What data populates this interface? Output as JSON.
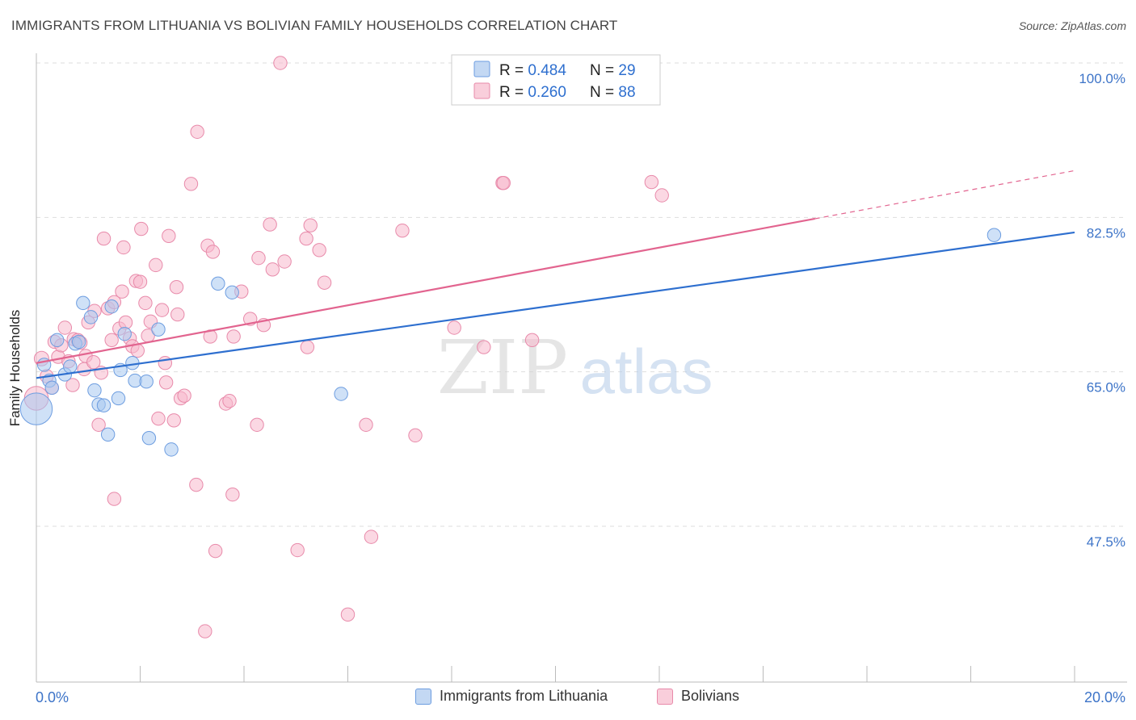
{
  "title": "IMMIGRANTS FROM LITHUANIA VS BOLIVIAN FAMILY HOUSEHOLDS CORRELATION CHART",
  "source": "Source: ZipAtlas.com",
  "watermark": {
    "zip": "ZIP",
    "atlas": "atlas"
  },
  "colors": {
    "blue_fill": "#a8c8f0",
    "blue_stroke": "#6d9de0",
    "blue_line": "#2e6fcf",
    "pink_fill": "#f7b8cc",
    "pink_stroke": "#e88aaa",
    "pink_line": "#e2648f",
    "axis_text": "#3d74c8",
    "grid": "#dddddd"
  },
  "legend": {
    "rows": [
      {
        "series": "blue",
        "r_label": "R = ",
        "r_value": "0.484",
        "n_label": "N = ",
        "n_value": "29"
      },
      {
        "series": "pink",
        "r_label": "R = ",
        "r_value": "0.260",
        "n_label": "N = ",
        "n_value": "88"
      }
    ]
  },
  "bottom_legend": [
    {
      "series": "blue",
      "label": "Immigrants from Lithuania"
    },
    {
      "series": "pink",
      "label": "Bolivians"
    }
  ],
  "chart_data": {
    "type": "scatter",
    "title": "IMMIGRANTS FROM LITHUANIA VS BOLIVIAN FAMILY HOUSEHOLDS CORRELATION CHART",
    "xlabel": "",
    "ylabel": "Family Households",
    "xlim": [
      0.0,
      20.0
    ],
    "ylim": [
      30.0,
      102.0
    ],
    "x_tick_labels": [
      {
        "value": 0.0,
        "label": "0.0%"
      },
      {
        "value": 20.0,
        "label": "20.0%"
      }
    ],
    "y_tick_labels": [
      {
        "value": 100.0,
        "label": "100.0%"
      },
      {
        "value": 82.5,
        "label": "82.5%"
      },
      {
        "value": 65.0,
        "label": "65.0%"
      },
      {
        "value": 47.5,
        "label": "47.5%"
      }
    ],
    "series": [
      {
        "name": "Immigrants from Lithuania",
        "color": "blue",
        "R": 0.484,
        "N": 29,
        "trend": {
          "x0": 0.0,
          "y0": 64.3,
          "x1": 20.0,
          "y1": 80.8,
          "dash_from": null
        },
        "points": [
          [
            0.0,
            60.8,
            24
          ],
          [
            0.15,
            65.8,
            10
          ],
          [
            0.25,
            64.0,
            10
          ],
          [
            0.3,
            63.2,
            10
          ],
          [
            0.4,
            68.6,
            10
          ],
          [
            0.55,
            64.7,
            10
          ],
          [
            0.65,
            65.6,
            10
          ],
          [
            0.75,
            68.2,
            10
          ],
          [
            0.82,
            68.4,
            10
          ],
          [
            0.9,
            72.8,
            10
          ],
          [
            1.05,
            71.2,
            10
          ],
          [
            1.12,
            62.9,
            10
          ],
          [
            1.2,
            61.3,
            10
          ],
          [
            1.3,
            61.2,
            10
          ],
          [
            1.38,
            57.9,
            10
          ],
          [
            1.45,
            72.4,
            10
          ],
          [
            1.58,
            62.0,
            10
          ],
          [
            1.62,
            65.2,
            10
          ],
          [
            1.7,
            69.3,
            10
          ],
          [
            1.85,
            66.0,
            10
          ],
          [
            1.9,
            64.0,
            10
          ],
          [
            2.12,
            63.9,
            10
          ],
          [
            2.17,
            57.5,
            10
          ],
          [
            2.35,
            69.8,
            10
          ],
          [
            2.6,
            56.2,
            10
          ],
          [
            3.5,
            75.0,
            10
          ],
          [
            3.77,
            74.0,
            10
          ],
          [
            5.87,
            62.5,
            10
          ],
          [
            18.45,
            80.5,
            10
          ]
        ]
      },
      {
        "name": "Bolivians",
        "color": "pink",
        "R": 0.26,
        "N": 88,
        "trend": {
          "x0": 0.0,
          "y0": 66.0,
          "x1": 20.0,
          "y1": 87.8,
          "dash_from": 15.0
        },
        "points": [
          [
            0.0,
            62.0,
            18
          ],
          [
            0.1,
            66.5,
            11
          ],
          [
            0.2,
            64.5,
            10
          ],
          [
            0.3,
            63.2,
            10
          ],
          [
            0.35,
            68.4,
            10
          ],
          [
            0.42,
            66.7,
            10
          ],
          [
            0.48,
            68.0,
            10
          ],
          [
            0.55,
            70.0,
            10
          ],
          [
            0.62,
            66.2,
            10
          ],
          [
            0.7,
            63.5,
            10
          ],
          [
            0.72,
            68.7,
            10
          ],
          [
            0.8,
            68.6,
            10
          ],
          [
            0.85,
            68.3,
            10
          ],
          [
            0.92,
            65.3,
            10
          ],
          [
            0.95,
            66.8,
            10
          ],
          [
            1.0,
            70.6,
            10
          ],
          [
            1.1,
            66.1,
            10
          ],
          [
            1.12,
            71.9,
            10
          ],
          [
            1.2,
            59.0,
            10
          ],
          [
            1.25,
            64.9,
            10
          ],
          [
            1.3,
            80.1,
            10
          ],
          [
            1.38,
            72.2,
            10
          ],
          [
            1.45,
            68.6,
            10
          ],
          [
            1.5,
            72.9,
            10
          ],
          [
            1.5,
            50.6,
            10
          ],
          [
            1.6,
            69.9,
            10
          ],
          [
            1.65,
            74.1,
            10
          ],
          [
            1.68,
            79.1,
            10
          ],
          [
            1.72,
            70.6,
            10
          ],
          [
            1.8,
            68.8,
            10
          ],
          [
            1.85,
            67.9,
            10
          ],
          [
            1.92,
            75.3,
            10
          ],
          [
            1.95,
            67.4,
            10
          ],
          [
            2.0,
            75.2,
            10
          ],
          [
            2.02,
            81.2,
            10
          ],
          [
            2.1,
            72.8,
            10
          ],
          [
            2.15,
            69.1,
            10
          ],
          [
            2.2,
            70.7,
            10
          ],
          [
            2.3,
            77.1,
            10
          ],
          [
            2.35,
            59.7,
            10
          ],
          [
            2.42,
            72.0,
            10
          ],
          [
            2.48,
            66.0,
            10
          ],
          [
            2.5,
            63.8,
            10
          ],
          [
            2.55,
            80.4,
            10
          ],
          [
            2.65,
            59.5,
            10
          ],
          [
            2.7,
            74.6,
            10
          ],
          [
            2.72,
            71.5,
            10
          ],
          [
            2.78,
            62.0,
            10
          ],
          [
            2.85,
            62.3,
            10
          ],
          [
            2.98,
            86.3,
            10
          ],
          [
            3.08,
            52.2,
            10
          ],
          [
            3.1,
            92.2,
            10
          ],
          [
            3.25,
            35.6,
            10
          ],
          [
            3.3,
            79.3,
            10
          ],
          [
            3.35,
            69.0,
            10
          ],
          [
            3.4,
            78.6,
            10
          ],
          [
            3.45,
            44.7,
            10
          ],
          [
            3.65,
            61.4,
            10
          ],
          [
            3.72,
            61.7,
            10
          ],
          [
            3.78,
            51.1,
            10
          ],
          [
            3.8,
            69.0,
            10
          ],
          [
            3.95,
            74.1,
            10
          ],
          [
            4.12,
            71.0,
            10
          ],
          [
            4.25,
            59.0,
            10
          ],
          [
            4.28,
            77.9,
            10
          ],
          [
            4.38,
            70.3,
            10
          ],
          [
            4.5,
            81.7,
            10
          ],
          [
            4.55,
            76.6,
            10
          ],
          [
            4.7,
            100.0,
            10
          ],
          [
            4.78,
            77.5,
            10
          ],
          [
            5.03,
            44.8,
            10
          ],
          [
            5.2,
            80.1,
            10
          ],
          [
            5.22,
            67.8,
            10
          ],
          [
            5.28,
            81.6,
            10
          ],
          [
            5.45,
            78.8,
            10
          ],
          [
            5.55,
            75.1,
            10
          ],
          [
            6.0,
            37.5,
            10
          ],
          [
            6.35,
            59.0,
            10
          ],
          [
            6.45,
            46.3,
            10
          ],
          [
            7.05,
            81.0,
            10
          ],
          [
            7.3,
            57.8,
            10
          ],
          [
            8.05,
            70.0,
            10
          ],
          [
            8.62,
            67.8,
            10
          ],
          [
            8.98,
            86.4,
            10
          ],
          [
            9.0,
            86.4,
            10
          ],
          [
            9.55,
            68.6,
            10
          ],
          [
            11.85,
            86.5,
            10
          ],
          [
            12.05,
            85.0,
            10
          ]
        ]
      }
    ]
  }
}
